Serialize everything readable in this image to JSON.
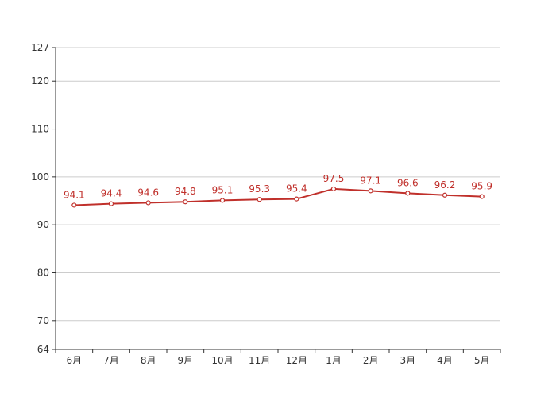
{
  "chart_data": {
    "type": "line",
    "title": "",
    "xlabel": "",
    "ylabel": "",
    "categories": [
      "6月",
      "7月",
      "8月",
      "9月",
      "10月",
      "11月",
      "12月",
      "1月",
      "2月",
      "3月",
      "4月",
      "5月"
    ],
    "series": [
      {
        "values": [
          94.1,
          94.4,
          94.6,
          94.8,
          95.1,
          95.3,
          95.4,
          97.5,
          97.1,
          96.6,
          96.2,
          95.9
        ],
        "color": "#c0302b"
      }
    ],
    "ylim": [
      64,
      127
    ],
    "yticks": [
      64,
      70,
      80,
      90,
      100,
      110,
      120,
      127
    ],
    "grid": true,
    "legend": "none",
    "colors": {
      "line": "#c0302b",
      "grid": "#cccccc",
      "axis": "#333333"
    }
  }
}
